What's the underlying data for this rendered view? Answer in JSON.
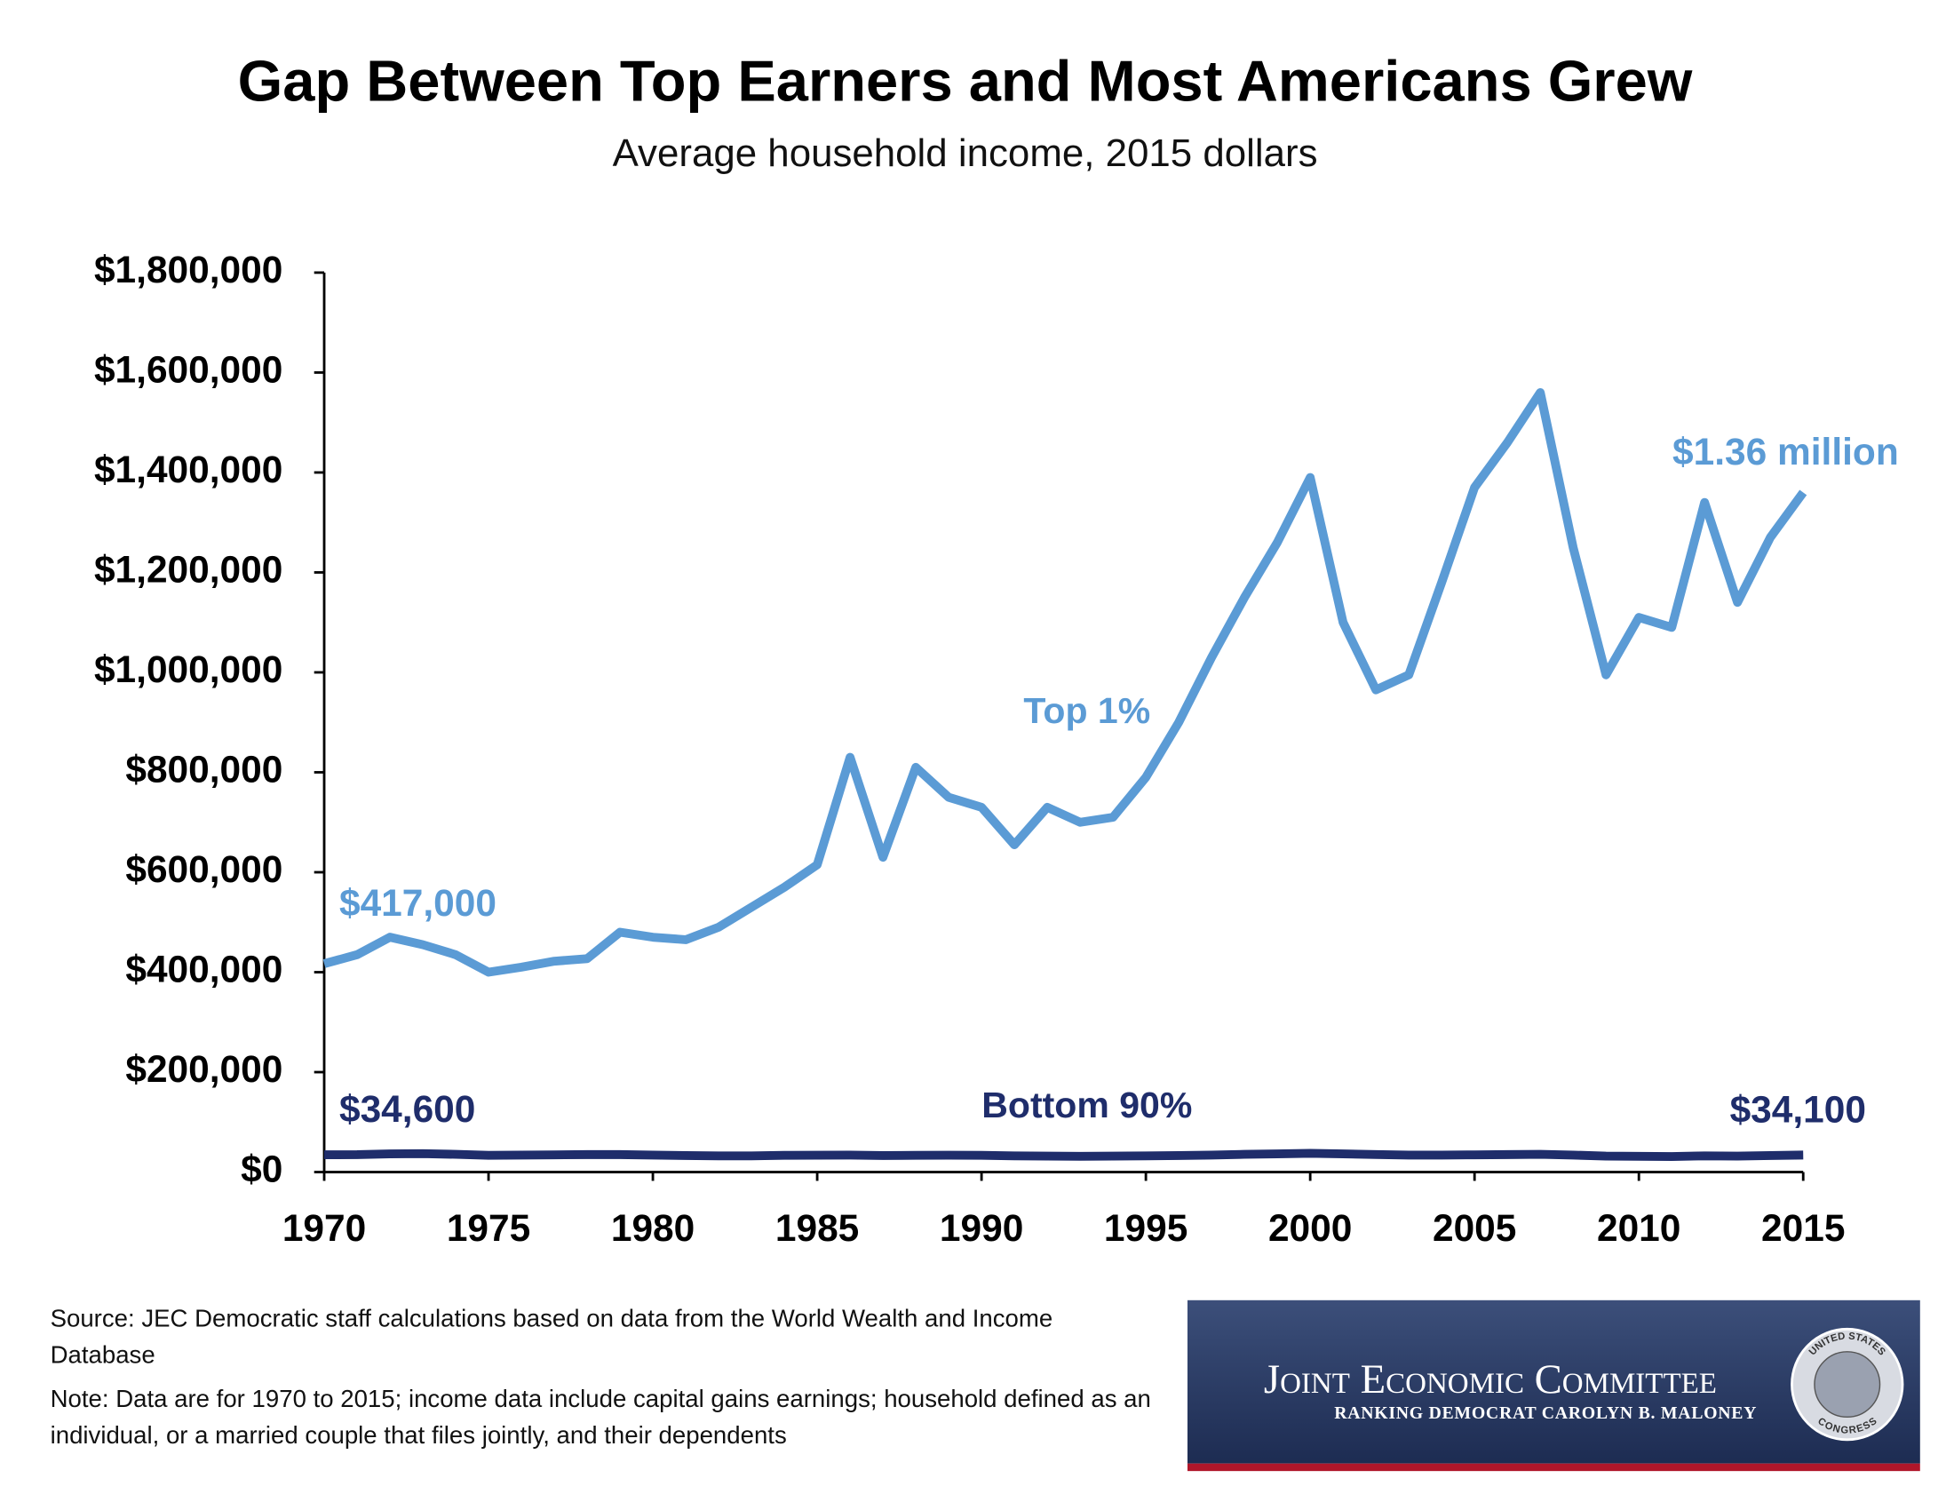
{
  "chart_data": {
    "type": "line",
    "title": "Gap Between Top Earners and Most Americans Grew",
    "subtitle": "Average household income, 2015 dollars",
    "x": [
      1970,
      1971,
      1972,
      1973,
      1974,
      1975,
      1976,
      1977,
      1978,
      1979,
      1980,
      1981,
      1982,
      1983,
      1984,
      1985,
      1986,
      1987,
      1988,
      1989,
      1990,
      1991,
      1992,
      1993,
      1994,
      1995,
      1996,
      1997,
      1998,
      1999,
      2000,
      2001,
      2002,
      2003,
      2004,
      2005,
      2006,
      2007,
      2008,
      2009,
      2010,
      2011,
      2012,
      2013,
      2014,
      2015
    ],
    "series": [
      {
        "name": "Top 1%",
        "color": "#5b9bd5",
        "values": [
          417000,
          435000,
          470000,
          455000,
          435000,
          400000,
          410000,
          422000,
          427000,
          480000,
          470000,
          465000,
          490000,
          530000,
          570000,
          615000,
          830000,
          630000,
          810000,
          750000,
          730000,
          655000,
          730000,
          700000,
          710000,
          790000,
          900000,
          1030000,
          1150000,
          1260000,
          1390000,
          1100000,
          965000,
          995000,
          1180000,
          1370000,
          1460000,
          1560000,
          1250000,
          995000,
          1110000,
          1090000,
          1340000,
          1140000,
          1270000,
          1360000
        ],
        "value_labels": [
          "$417,000",
          null,
          null,
          null,
          null,
          null,
          null,
          null,
          null,
          null,
          null,
          null,
          null,
          null,
          null,
          null,
          null,
          null,
          null,
          null,
          null,
          null,
          null,
          null,
          null,
          null,
          null,
          null,
          null,
          null,
          null,
          null,
          null,
          null,
          null,
          null,
          null,
          null,
          null,
          null,
          null,
          null,
          null,
          null,
          null,
          "$1.36 million"
        ]
      },
      {
        "name": "Bottom 90%",
        "color": "#1f2d6b",
        "values": [
          34600,
          34800,
          36500,
          36800,
          35500,
          33500,
          34000,
          34500,
          35000,
          35000,
          34000,
          33000,
          32500,
          32500,
          33500,
          33800,
          34000,
          33000,
          33500,
          33800,
          33500,
          32500,
          32000,
          31500,
          32000,
          32500,
          33000,
          34000,
          35500,
          36500,
          37500,
          36500,
          35000,
          34000,
          34000,
          34500,
          35000,
          35500,
          34000,
          32000,
          31500,
          31000,
          32500,
          32000,
          33000,
          34100
        ],
        "value_labels": [
          "$34,600",
          null,
          null,
          null,
          null,
          null,
          null,
          null,
          null,
          null,
          null,
          null,
          null,
          null,
          null,
          null,
          null,
          null,
          null,
          null,
          null,
          null,
          null,
          null,
          null,
          null,
          null,
          null,
          null,
          null,
          null,
          null,
          null,
          null,
          null,
          null,
          null,
          null,
          null,
          null,
          null,
          null,
          null,
          null,
          null,
          "$34,100"
        ]
      }
    ],
    "xlim": [
      1970,
      2015
    ],
    "xticks": [
      1970,
      1975,
      1980,
      1985,
      1990,
      1995,
      2000,
      2005,
      2010,
      2015
    ],
    "ylim": [
      0,
      1800000
    ],
    "yticks": [
      {
        "value": 0,
        "label": "$0"
      },
      {
        "value": 200000,
        "label": "$200,000"
      },
      {
        "value": 400000,
        "label": "$400,000"
      },
      {
        "value": 600000,
        "label": "$600,000"
      },
      {
        "value": 800000,
        "label": "$800,000"
      },
      {
        "value": 1000000,
        "label": "$1,000,000"
      },
      {
        "value": 1200000,
        "label": "$1,200,000"
      },
      {
        "value": 1400000,
        "label": "$1,400,000"
      },
      {
        "value": 1600000,
        "label": "$1,600,000"
      },
      {
        "value": 1800000,
        "label": "$1,800,000"
      }
    ],
    "grid": false
  },
  "footer": {
    "source": "Source:  JEC Democratic staff calculations based on data from the World Wealth and Income Database",
    "note": "Note: Data are for 1970 to 2015; income data include capital gains earnings; household defined as an individual, or a married couple that files jointly, and their dependents",
    "logo_title": "Joint Economic Committee",
    "logo_subtitle": "Ranking Democrat Carolyn B. Maloney",
    "seal_top": "United States",
    "seal_bottom": "Congress"
  }
}
